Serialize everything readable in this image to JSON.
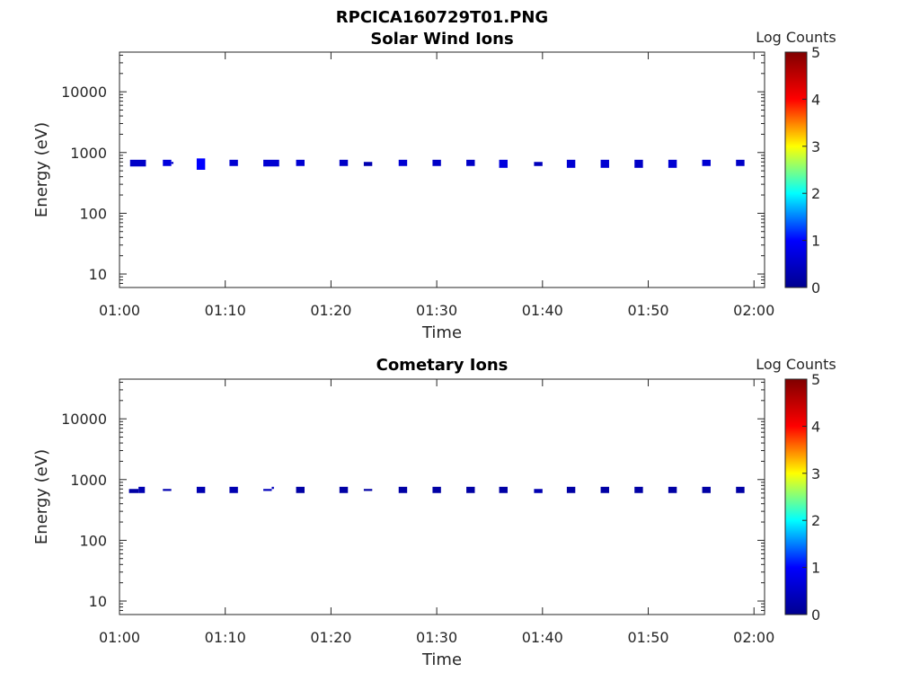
{
  "figure_title": "RPCICA160729T01.PNG",
  "colorbar_colors": [
    "#00008f",
    "#0000ff",
    "#00ffff",
    "#ffff00",
    "#ff0000",
    "#800000"
  ],
  "chart_data": [
    {
      "type": "heatmap",
      "title": "Solar Wind Ions",
      "xlabel": "Time",
      "ylabel": "Energy (eV)",
      "x_ticks": [
        "01:00",
        "01:10",
        "01:20",
        "01:30",
        "01:40",
        "01:50",
        "02:00"
      ],
      "x_range_minutes": [
        0,
        61
      ],
      "y_scale": "log",
      "y_ticks": [
        "10",
        "100",
        "1000",
        "10000"
      ],
      "ylim": [
        6,
        45000
      ],
      "colorbar": {
        "label": "Log Counts",
        "ticks": [
          "0",
          "1",
          "2",
          "3",
          "4",
          "5"
        ],
        "range": [
          0,
          5
        ]
      },
      "cells": [
        {
          "t": 1.0,
          "dt": 1.5,
          "e_low": 590,
          "e_high": 760,
          "log_counts": 0.5
        },
        {
          "t": 4.1,
          "dt": 0.8,
          "e_low": 600,
          "e_high": 760,
          "log_counts": 0.7
        },
        {
          "t": 4.9,
          "dt": 0.2,
          "e_low": 650,
          "e_high": 700,
          "log_counts": 0.5
        },
        {
          "t": 7.3,
          "dt": 0.8,
          "e_low": 520,
          "e_high": 800,
          "log_counts": 1.0
        },
        {
          "t": 10.4,
          "dt": 0.8,
          "e_low": 600,
          "e_high": 760,
          "log_counts": 0.6
        },
        {
          "t": 13.6,
          "dt": 1.5,
          "e_low": 590,
          "e_high": 760,
          "log_counts": 0.6
        },
        {
          "t": 16.7,
          "dt": 0.8,
          "e_low": 600,
          "e_high": 760,
          "log_counts": 0.6
        },
        {
          "t": 20.8,
          "dt": 0.8,
          "e_low": 600,
          "e_high": 760,
          "log_counts": 0.5
        },
        {
          "t": 23.1,
          "dt": 0.8,
          "e_low": 600,
          "e_high": 700,
          "log_counts": 0.3
        },
        {
          "t": 26.4,
          "dt": 0.8,
          "e_low": 600,
          "e_high": 760,
          "log_counts": 0.6
        },
        {
          "t": 29.6,
          "dt": 0.8,
          "e_low": 600,
          "e_high": 760,
          "log_counts": 0.5
        },
        {
          "t": 32.8,
          "dt": 0.8,
          "e_low": 600,
          "e_high": 760,
          "log_counts": 0.5
        },
        {
          "t": 35.9,
          "dt": 0.8,
          "e_low": 560,
          "e_high": 760,
          "log_counts": 0.7
        },
        {
          "t": 39.2,
          "dt": 0.8,
          "e_low": 600,
          "e_high": 700,
          "log_counts": 0.4
        },
        {
          "t": 42.3,
          "dt": 0.8,
          "e_low": 560,
          "e_high": 760,
          "log_counts": 0.6
        },
        {
          "t": 45.5,
          "dt": 0.8,
          "e_low": 560,
          "e_high": 760,
          "log_counts": 0.6
        },
        {
          "t": 48.7,
          "dt": 0.8,
          "e_low": 560,
          "e_high": 760,
          "log_counts": 0.5
        },
        {
          "t": 51.9,
          "dt": 0.8,
          "e_low": 560,
          "e_high": 760,
          "log_counts": 0.6
        },
        {
          "t": 55.1,
          "dt": 0.8,
          "e_low": 600,
          "e_high": 760,
          "log_counts": 0.6
        },
        {
          "t": 58.3,
          "dt": 0.8,
          "e_low": 600,
          "e_high": 760,
          "log_counts": 0.5
        }
      ]
    },
    {
      "type": "heatmap",
      "title": "Cometary Ions",
      "xlabel": "Time",
      "ylabel": "Energy (eV)",
      "x_ticks": [
        "01:00",
        "01:10",
        "01:20",
        "01:30",
        "01:40",
        "01:50",
        "02:00"
      ],
      "x_range_minutes": [
        0,
        61
      ],
      "y_scale": "log",
      "y_ticks": [
        "10",
        "100",
        "1000",
        "10000"
      ],
      "ylim": [
        6,
        45000
      ],
      "colorbar": {
        "label": "Log Counts",
        "ticks": [
          "0",
          "1",
          "2",
          "3",
          "4",
          "5"
        ],
        "range": [
          0,
          5
        ]
      },
      "cells": [
        {
          "t": 0.9,
          "dt": 0.9,
          "e_low": 600,
          "e_high": 700,
          "log_counts": 0.2
        },
        {
          "t": 1.8,
          "dt": 0.6,
          "e_low": 600,
          "e_high": 760,
          "log_counts": 0.3
        },
        {
          "t": 4.1,
          "dt": 0.8,
          "e_low": 650,
          "e_high": 700,
          "log_counts": 0.3
        },
        {
          "t": 7.3,
          "dt": 0.8,
          "e_low": 600,
          "e_high": 760,
          "log_counts": 0.3
        },
        {
          "t": 10.4,
          "dt": 0.8,
          "e_low": 600,
          "e_high": 760,
          "log_counts": 0.3
        },
        {
          "t": 13.6,
          "dt": 0.8,
          "e_low": 650,
          "e_high": 700,
          "log_counts": 0.4
        },
        {
          "t": 14.4,
          "dt": 0.2,
          "e_low": 700,
          "e_high": 760,
          "log_counts": 0.4
        },
        {
          "t": 16.7,
          "dt": 0.8,
          "e_low": 600,
          "e_high": 760,
          "log_counts": 0.2
        },
        {
          "t": 20.8,
          "dt": 0.8,
          "e_low": 600,
          "e_high": 760,
          "log_counts": 0.2
        },
        {
          "t": 23.1,
          "dt": 0.8,
          "e_low": 650,
          "e_high": 700,
          "log_counts": 0.2
        },
        {
          "t": 26.4,
          "dt": 0.8,
          "e_low": 600,
          "e_high": 760,
          "log_counts": 0.2
        },
        {
          "t": 29.6,
          "dt": 0.8,
          "e_low": 600,
          "e_high": 760,
          "log_counts": 0.2
        },
        {
          "t": 32.8,
          "dt": 0.8,
          "e_low": 600,
          "e_high": 760,
          "log_counts": 0.2
        },
        {
          "t": 35.9,
          "dt": 0.8,
          "e_low": 600,
          "e_high": 760,
          "log_counts": 0.2
        },
        {
          "t": 39.2,
          "dt": 0.8,
          "e_low": 600,
          "e_high": 700,
          "log_counts": 0.3
        },
        {
          "t": 42.3,
          "dt": 0.8,
          "e_low": 600,
          "e_high": 760,
          "log_counts": 0.2
        },
        {
          "t": 45.5,
          "dt": 0.8,
          "e_low": 600,
          "e_high": 760,
          "log_counts": 0.2
        },
        {
          "t": 48.7,
          "dt": 0.8,
          "e_low": 600,
          "e_high": 760,
          "log_counts": 0.2
        },
        {
          "t": 51.9,
          "dt": 0.8,
          "e_low": 600,
          "e_high": 760,
          "log_counts": 0.2
        },
        {
          "t": 55.1,
          "dt": 0.8,
          "e_low": 600,
          "e_high": 760,
          "log_counts": 0.2
        },
        {
          "t": 58.3,
          "dt": 0.8,
          "e_low": 600,
          "e_high": 760,
          "log_counts": 0.2
        }
      ]
    }
  ]
}
